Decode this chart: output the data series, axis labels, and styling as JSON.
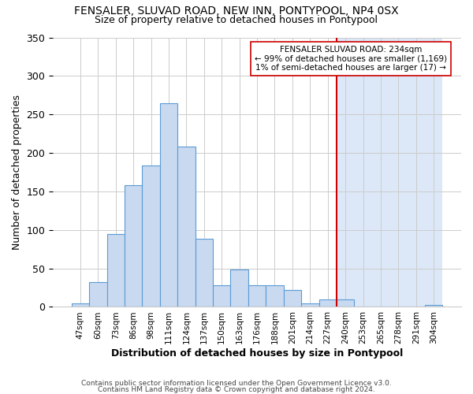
{
  "title": "FENSALER, SLUVAD ROAD, NEW INN, PONTYPOOL, NP4 0SX",
  "subtitle": "Size of property relative to detached houses in Pontypool",
  "xlabel": "Distribution of detached houses by size in Pontypool",
  "ylabel": "Number of detached properties",
  "bar_labels": [
    "47sqm",
    "60sqm",
    "73sqm",
    "86sqm",
    "98sqm",
    "111sqm",
    "124sqm",
    "137sqm",
    "150sqm",
    "163sqm",
    "176sqm",
    "188sqm",
    "201sqm",
    "214sqm",
    "227sqm",
    "240sqm",
    "253sqm",
    "265sqm",
    "278sqm",
    "291sqm",
    "304sqm"
  ],
  "bar_heights": [
    5,
    32,
    95,
    158,
    184,
    265,
    208,
    88,
    28,
    49,
    28,
    28,
    22,
    5,
    10,
    10,
    0,
    0,
    0,
    0,
    3
  ],
  "bar_color": "#c8d9f0",
  "bar_edge_color": "#5b9bd5",
  "highlight_bg_color": "#dce8f7",
  "vline_color": "#cc0000",
  "vline_x_index": 15,
  "annotation_title": "FENSALER SLUVAD ROAD: 234sqm",
  "annotation_line1": "← 99% of detached houses are smaller (1,169)",
  "annotation_line2": "1% of semi-detached houses are larger (17) →",
  "ylim": [
    0,
    350
  ],
  "yticks": [
    0,
    50,
    100,
    150,
    200,
    250,
    300,
    350
  ],
  "footer1": "Contains HM Land Registry data © Crown copyright and database right 2024.",
  "footer2": "Contains public sector information licensed under the Open Government Licence v3.0.",
  "bg_color": "#ffffff",
  "grid_color": "#cccccc"
}
